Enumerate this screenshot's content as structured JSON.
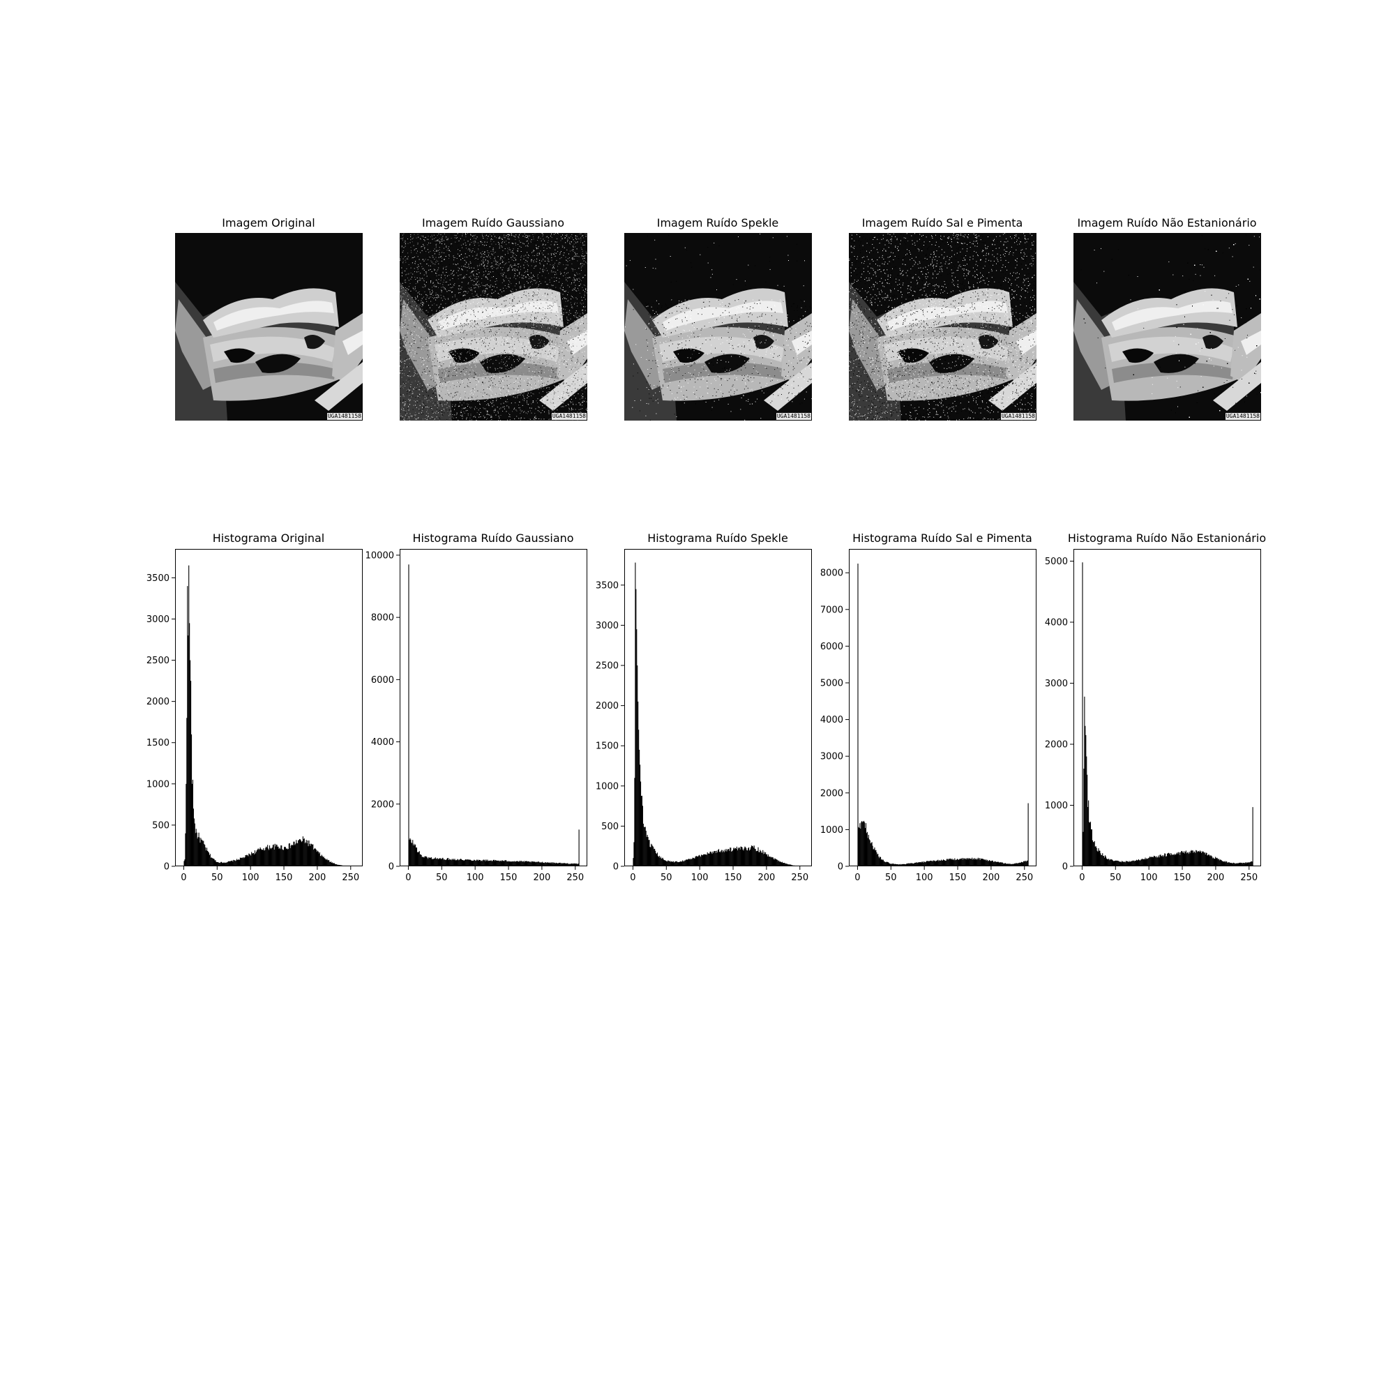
{
  "figure": {
    "image_titles": [
      "Imagem Original",
      "Imagem Ruído Gaussiano",
      "Imagem Ruído Spekle",
      "Imagem Ruído Sal e Pimenta",
      "Imagem Ruído Não Estanionário"
    ],
    "image_id_text": "UGA1481158",
    "noise_types": [
      "none",
      "gaussian",
      "speckle",
      "salt-pepper",
      "nonstationary"
    ]
  },
  "chart_data": [
    {
      "type": "bar",
      "title": "Histograma Original",
      "xlim": [
        -13,
        268
      ],
      "ylim": [
        0,
        3850
      ],
      "xticks": [
        0,
        50,
        100,
        150,
        200,
        250
      ],
      "yticks": [
        0,
        500,
        1000,
        1500,
        2000,
        2500,
        3000,
        3500
      ],
      "profile": {
        "spikes": [
          [
            2,
            400
          ],
          [
            3,
            1000
          ],
          [
            4,
            1800
          ],
          [
            5,
            3400
          ],
          [
            6,
            2800
          ],
          [
            7,
            3650
          ],
          [
            8,
            2950
          ],
          [
            9,
            2500
          ],
          [
            10,
            2250
          ],
          [
            11,
            1600
          ],
          [
            12,
            1000
          ],
          [
            13,
            1050
          ],
          [
            14,
            700
          ],
          [
            15,
            580
          ],
          [
            16,
            520
          ]
        ],
        "curve": [
          [
            0,
            60
          ],
          [
            17,
            450
          ],
          [
            20,
            380
          ],
          [
            25,
            320
          ],
          [
            30,
            260
          ],
          [
            35,
            180
          ],
          [
            40,
            120
          ],
          [
            45,
            80
          ],
          [
            50,
            50
          ],
          [
            60,
            45
          ],
          [
            70,
            60
          ],
          [
            80,
            80
          ],
          [
            90,
            110
          ],
          [
            100,
            150
          ],
          [
            110,
            190
          ],
          [
            120,
            220
          ],
          [
            130,
            235
          ],
          [
            140,
            240
          ],
          [
            150,
            225
          ],
          [
            160,
            250
          ],
          [
            170,
            300
          ],
          [
            180,
            320
          ],
          [
            190,
            260
          ],
          [
            200,
            170
          ],
          [
            210,
            100
          ],
          [
            220,
            50
          ],
          [
            230,
            20
          ],
          [
            240,
            5
          ],
          [
            250,
            0
          ],
          [
            255,
            0
          ]
        ]
      }
    },
    {
      "type": "bar",
      "title": "Histograma Ruído Gaussiano",
      "xlim": [
        -13,
        268
      ],
      "ylim": [
        0,
        10200
      ],
      "xticks": [
        0,
        50,
        100,
        150,
        200,
        250
      ],
      "yticks": [
        0,
        2000,
        4000,
        6000,
        8000,
        10000
      ],
      "profile": {
        "spikes": [
          [
            0,
            9700
          ],
          [
            255,
            1180
          ]
        ],
        "curve": [
          [
            1,
            820
          ],
          [
            5,
            800
          ],
          [
            10,
            650
          ],
          [
            15,
            450
          ],
          [
            20,
            320
          ],
          [
            30,
            270
          ],
          [
            50,
            240
          ],
          [
            100,
            200
          ],
          [
            150,
            170
          ],
          [
            200,
            130
          ],
          [
            230,
            100
          ],
          [
            250,
            80
          ],
          [
            254,
            80
          ]
        ]
      }
    },
    {
      "type": "bar",
      "title": "Histograma Ruído Spekle",
      "xlim": [
        -13,
        268
      ],
      "ylim": [
        0,
        3950
      ],
      "xticks": [
        0,
        50,
        100,
        150,
        200,
        250
      ],
      "yticks": [
        0,
        500,
        1000,
        1500,
        2000,
        2500,
        3000,
        3500
      ],
      "profile": {
        "spikes": [
          [
            1,
            300
          ],
          [
            2,
            1100
          ],
          [
            3,
            3780
          ],
          [
            4,
            3450
          ],
          [
            5,
            2950
          ],
          [
            6,
            2500
          ],
          [
            7,
            2050
          ],
          [
            8,
            1700
          ],
          [
            9,
            1450
          ]
        ],
        "curve": [
          [
            0,
            100
          ],
          [
            10,
            1200
          ],
          [
            13,
            800
          ],
          [
            16,
            500
          ],
          [
            20,
            360
          ],
          [
            25,
            280
          ],
          [
            30,
            210
          ],
          [
            35,
            160
          ],
          [
            40,
            110
          ],
          [
            50,
            70
          ],
          [
            60,
            55
          ],
          [
            70,
            60
          ],
          [
            80,
            80
          ],
          [
            90,
            100
          ],
          [
            100,
            130
          ],
          [
            110,
            160
          ],
          [
            120,
            180
          ],
          [
            130,
            195
          ],
          [
            140,
            205
          ],
          [
            150,
            210
          ],
          [
            160,
            215
          ],
          [
            170,
            225
          ],
          [
            180,
            235
          ],
          [
            190,
            200
          ],
          [
            200,
            150
          ],
          [
            210,
            100
          ],
          [
            220,
            60
          ],
          [
            230,
            30
          ],
          [
            240,
            10
          ],
          [
            250,
            2
          ],
          [
            255,
            0
          ]
        ]
      }
    },
    {
      "type": "bar",
      "title": "Histograma Ruído Sal e Pimenta",
      "xlim": [
        -13,
        268
      ],
      "ylim": [
        0,
        8650
      ],
      "xticks": [
        0,
        50,
        100,
        150,
        200,
        250
      ],
      "yticks": [
        0,
        1000,
        2000,
        3000,
        4000,
        5000,
        6000,
        7000,
        8000
      ],
      "profile": {
        "spikes": [
          [
            0,
            8250
          ],
          [
            255,
            1720
          ]
        ],
        "curve": [
          [
            1,
            950
          ],
          [
            3,
            1100
          ],
          [
            5,
            1280
          ],
          [
            8,
            1250
          ],
          [
            10,
            1150
          ],
          [
            15,
            900
          ],
          [
            20,
            650
          ],
          [
            25,
            450
          ],
          [
            30,
            300
          ],
          [
            35,
            200
          ],
          [
            40,
            130
          ],
          [
            50,
            70
          ],
          [
            60,
            50
          ],
          [
            70,
            60
          ],
          [
            80,
            80
          ],
          [
            100,
            120
          ],
          [
            120,
            160
          ],
          [
            140,
            190
          ],
          [
            160,
            200
          ],
          [
            180,
            210
          ],
          [
            200,
            150
          ],
          [
            220,
            80
          ],
          [
            230,
            60
          ],
          [
            240,
            90
          ],
          [
            250,
            130
          ],
          [
            254,
            150
          ]
        ]
      }
    },
    {
      "type": "bar",
      "title": "Histograma Ruído Não Estanionário",
      "xlim": [
        -13,
        268
      ],
      "ylim": [
        0,
        5200
      ],
      "xticks": [
        0,
        50,
        100,
        150,
        200,
        250
      ],
      "yticks": [
        0,
        1000,
        2000,
        3000,
        4000,
        5000
      ],
      "profile": {
        "spikes": [
          [
            0,
            4980
          ],
          [
            2,
            1600
          ],
          [
            3,
            2780
          ],
          [
            4,
            2300
          ],
          [
            5,
            2150
          ],
          [
            6,
            1800
          ],
          [
            7,
            1500
          ],
          [
            255,
            970
          ]
        ],
        "curve": [
          [
            1,
            650
          ],
          [
            8,
            1100
          ],
          [
            10,
            850
          ],
          [
            13,
            600
          ],
          [
            16,
            420
          ],
          [
            20,
            320
          ],
          [
            25,
            250
          ],
          [
            30,
            190
          ],
          [
            35,
            150
          ],
          [
            40,
            110
          ],
          [
            50,
            85
          ],
          [
            60,
            75
          ],
          [
            70,
            80
          ],
          [
            80,
            90
          ],
          [
            100,
            140
          ],
          [
            120,
            180
          ],
          [
            140,
            215
          ],
          [
            150,
            220
          ],
          [
            160,
            230
          ],
          [
            175,
            240
          ],
          [
            185,
            200
          ],
          [
            200,
            130
          ],
          [
            210,
            90
          ],
          [
            220,
            60
          ],
          [
            230,
            50
          ],
          [
            240,
            55
          ],
          [
            250,
            65
          ],
          [
            254,
            75
          ]
        ]
      }
    }
  ]
}
